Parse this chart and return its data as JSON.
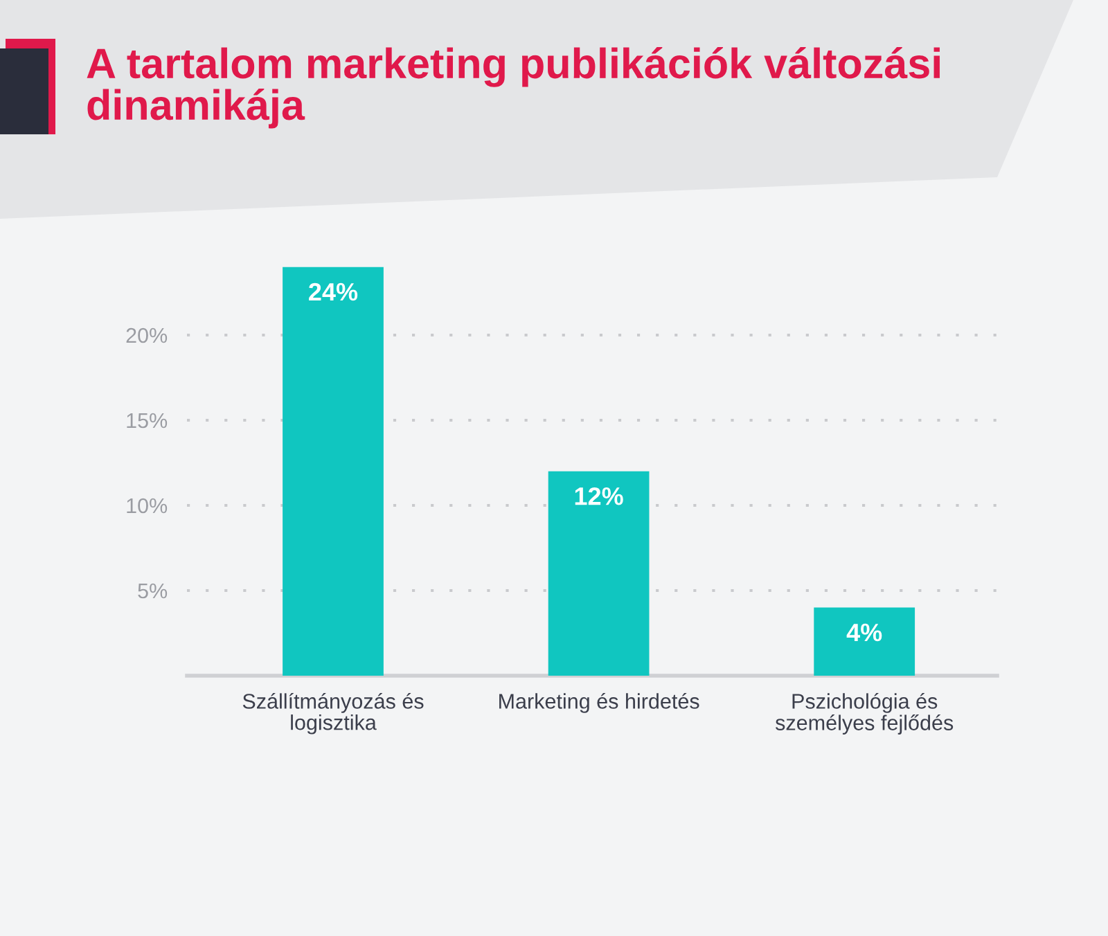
{
  "chart_data": {
    "type": "bar",
    "title": "A tartalom marketing publikációk változási dinamikája",
    "categories": [
      "Szállítmányozás és\nlogisztika",
      "Marketing és hirdetés",
      "Pszichológia és\nszemélyes fejlődés"
    ],
    "values": [
      24,
      12,
      4
    ],
    "value_labels": [
      "24%",
      "12%",
      "4%"
    ],
    "color": "#10c6c0",
    "ylim": [
      0,
      24
    ],
    "yticks": [
      {
        "value": 5,
        "label": "5%"
      },
      {
        "value": 10,
        "label": "10%"
      },
      {
        "value": 15,
        "label": "15%"
      },
      {
        "value": 20,
        "label": "20%"
      }
    ],
    "grid": "y"
  }
}
